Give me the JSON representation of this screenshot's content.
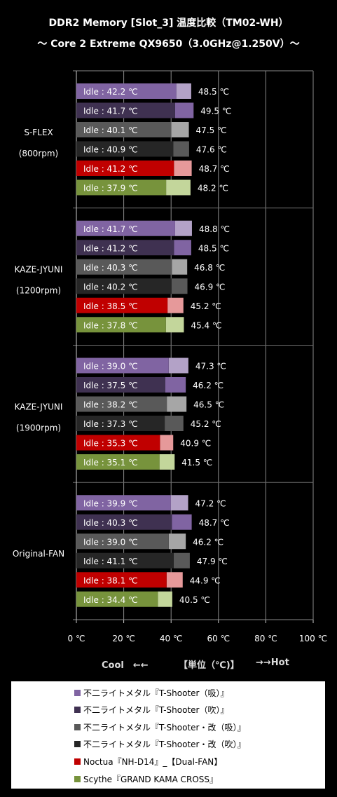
{
  "header": {
    "title_line1": "DDR2 Memory [Slot_3] 温度比較（TM02-WH）",
    "title_line2": "～ Core 2 Extreme QX9650（3.0GHz@1.250V）～"
  },
  "colors": {
    "background": "#000000",
    "grid": "#8a8a8a",
    "series_dark": [
      "#8064a2",
      "#3f3151",
      "#595959",
      "#262626",
      "#c00000",
      "#77933c"
    ],
    "series_light": [
      "#b3a2c7",
      "#8064a2",
      "#a6a6a6",
      "#595959",
      "#e6999a",
      "#c3d69b"
    ]
  },
  "chart_data": {
    "type": "bar",
    "orientation": "horizontal",
    "xlim": [
      0,
      100
    ],
    "x_ticks": [
      "0 ℃",
      "20 ℃",
      "40 ℃",
      "60 ℃",
      "80 ℃",
      "100 ℃"
    ],
    "axis_note": {
      "left": "Cool　←←",
      "center": "【単位（℃)】",
      "right": "→→Hot"
    },
    "groups": [
      {
        "label_line1": "S-FLEX",
        "label_line2": "(800rpm)",
        "idle": [
          42.2,
          41.7,
          40.1,
          40.9,
          41.2,
          37.9
        ],
        "load": [
          48.5,
          49.5,
          47.5,
          47.6,
          48.7,
          48.2
        ]
      },
      {
        "label_line1": "KAZE-JYUNI",
        "label_line2": "(1200rpm)",
        "idle": [
          41.7,
          41.2,
          40.3,
          40.2,
          38.5,
          37.8
        ],
        "load": [
          48.8,
          48.5,
          46.8,
          46.9,
          45.2,
          45.4
        ]
      },
      {
        "label_line1": "KAZE-JYUNI",
        "label_line2": "(1900rpm)",
        "idle": [
          39.0,
          37.5,
          38.2,
          37.3,
          35.3,
          35.1
        ],
        "load": [
          47.3,
          46.2,
          46.5,
          45.2,
          40.9,
          41.5
        ]
      },
      {
        "label_line1": "Original-FAN",
        "label_line2": "",
        "idle": [
          39.9,
          40.3,
          39.0,
          41.1,
          38.1,
          34.4
        ],
        "load": [
          47.2,
          48.7,
          46.2,
          47.9,
          44.9,
          40.5
        ]
      }
    ],
    "idle_prefix": "Idle : ",
    "unit": " ℃",
    "series": [
      {
        "name": "不二ライトメタル『T-Shooter（吸）』"
      },
      {
        "name": "不二ライトメタル『T-Shooter（吹）』"
      },
      {
        "name": "不二ライトメタル『T-Shooter・改（吸）』"
      },
      {
        "name": "不二ライトメタル『T-Shooter・改（吹）』"
      },
      {
        "name": "Noctua『NH-D14』_【Dual-FAN】"
      },
      {
        "name": "Scythe『GRAND KAMA CROSS』"
      }
    ]
  }
}
